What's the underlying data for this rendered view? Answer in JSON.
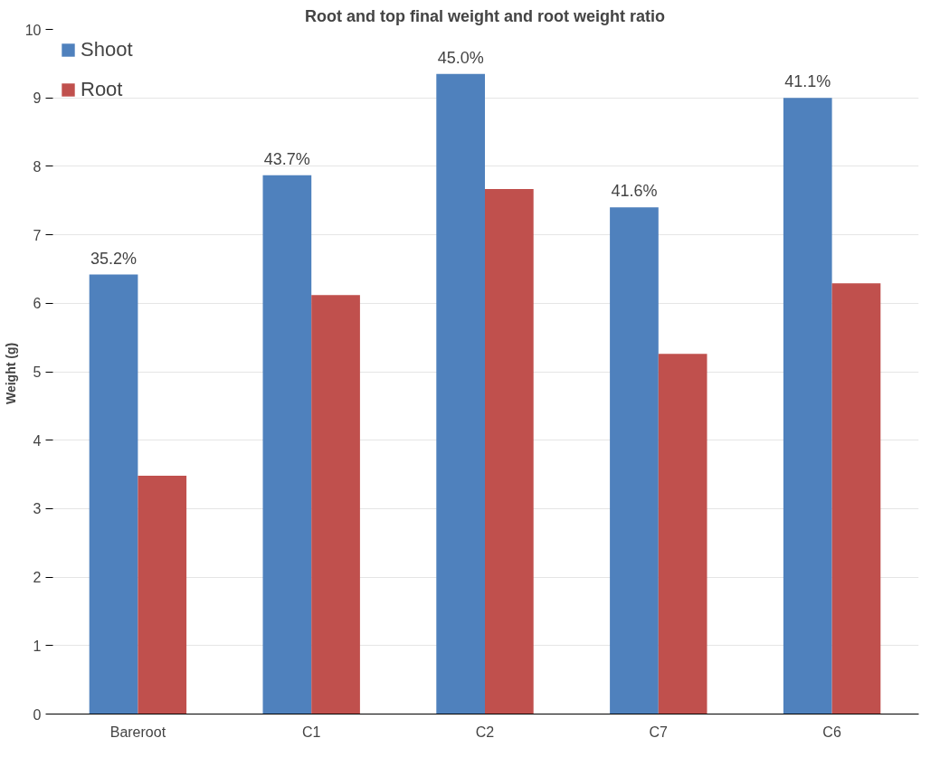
{
  "chart_data": {
    "type": "bar",
    "title": "Root and top final weight and root weight ratio",
    "ylabel": "Weight  (g)",
    "categories": [
      "Bareroot",
      "C1",
      "C2",
      "C7",
      "C6"
    ],
    "series": [
      {
        "name": "Shoot",
        "color": "#4f81bd",
        "values": [
          6.42,
          7.87,
          9.35,
          7.4,
          9.0
        ]
      },
      {
        "name": "Root",
        "color": "#c0504d",
        "values": [
          3.48,
          6.12,
          7.67,
          5.26,
          6.29
        ]
      }
    ],
    "annotations": [
      {
        "text": "35.2%",
        "x": "Bareroot",
        "y": 6.42
      },
      {
        "text": "43.7%",
        "x": "C1",
        "y": 7.87
      },
      {
        "text": "45.0%",
        "x": "C2",
        "y": 9.35
      },
      {
        "text": "41.6%",
        "x": "C7",
        "y": 7.4
      },
      {
        "text": "41.1%",
        "x": "C6",
        "y": 9.0
      }
    ],
    "ylim": [
      0,
      10
    ],
    "yticks": [
      0,
      1,
      2,
      3,
      4,
      5,
      6,
      7,
      8,
      9,
      10
    ],
    "grid": "y",
    "legend": "top left"
  }
}
